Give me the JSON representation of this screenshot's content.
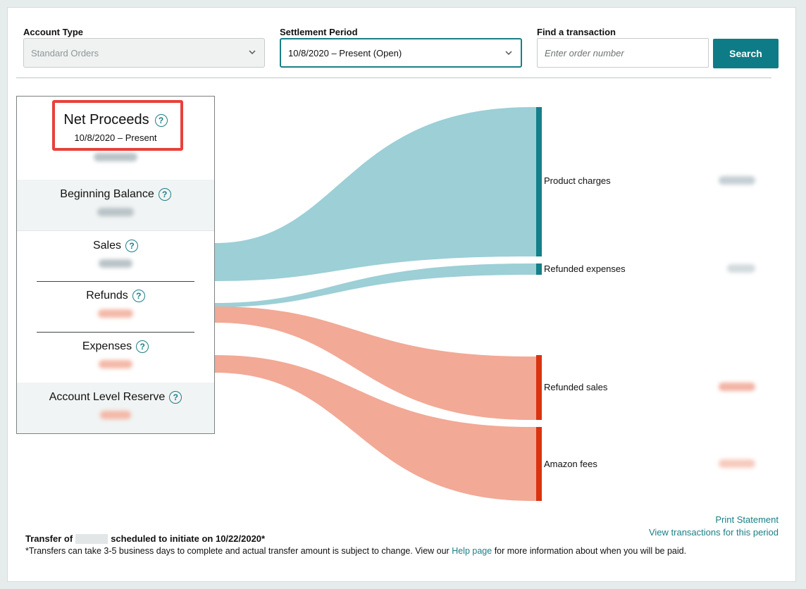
{
  "filters": {
    "account_type": {
      "label": "Account Type",
      "value": "Standard Orders"
    },
    "settlement_period": {
      "label": "Settlement Period",
      "value": "10/8/2020 – Present (Open)"
    },
    "find_transaction": {
      "label": "Find a transaction",
      "placeholder": "Enter order number",
      "button": "Search"
    }
  },
  "summary": {
    "net_proceeds": {
      "title": "Net Proceeds",
      "period": "10/8/2020 – Present"
    },
    "sections": [
      {
        "title": "Beginning Balance"
      },
      {
        "title": "Sales"
      },
      {
        "title": "Refunds"
      },
      {
        "title": "Expenses"
      },
      {
        "title": "Account Level Reserve"
      }
    ],
    "help_glyph": "?"
  },
  "sankey": {
    "categories": [
      {
        "label": "Product charges",
        "color": "#157f8a"
      },
      {
        "label": "Refunded expenses",
        "color": "#157f8a"
      },
      {
        "label": "Refunded sales",
        "color": "#d93411"
      },
      {
        "label": "Amazon fees",
        "color": "#d93411"
      }
    ],
    "flow_colors": {
      "positive": "#9ccfd6",
      "negative": "#f2a996"
    }
  },
  "links": {
    "print_statement": "Print Statement",
    "view_transactions": "View transactions for this period"
  },
  "footer": {
    "transfer_prefix": "Transfer of",
    "transfer_suffix": "scheduled to initiate on 10/22/2020*",
    "note_prefix": "*Transfers can take 3-5 business days to complete and actual transfer amount is subject to change. View our",
    "help_link": "Help page",
    "note_suffix": "for more information about when you will be paid."
  }
}
